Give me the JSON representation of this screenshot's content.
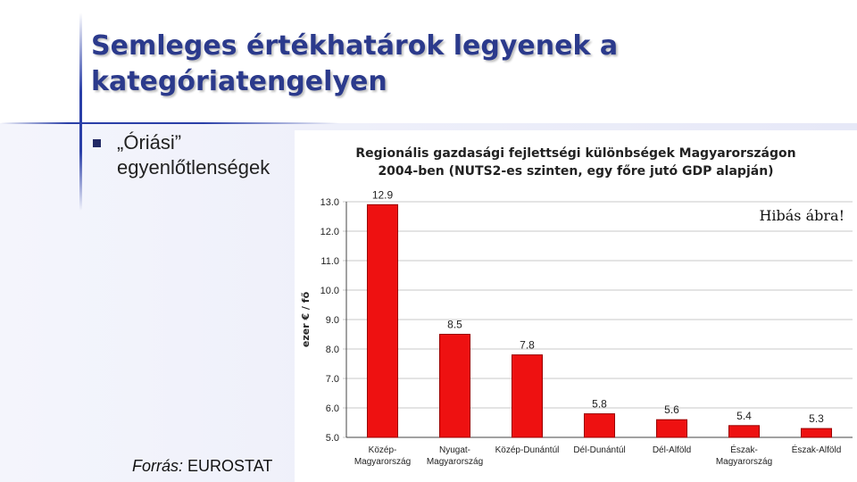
{
  "slide": {
    "title_line1": "Semleges értékhatárok legyenek a",
    "title_line2": "kategóriatengelyen",
    "bullet": "„Óriási”",
    "bullet_line2": "egyenlőtlenségek",
    "source_label": "Forrás:",
    "source_value": "EUROSTAT",
    "error_note": "Hibás ábra!"
  },
  "colors": {
    "bar": "#ee1111",
    "bar_edge": "#990000",
    "title": "#2b3a8c"
  },
  "chart_data": {
    "type": "bar",
    "title_line1": "Regionális gazdasági fejlettségi különbségek Magyarországon",
    "title_line2": "2004-ben (NUTS2-es szinten, egy főre jutó GDP alapján)",
    "ylabel": "ezer € / fő",
    "ylim": [
      5.0,
      13.0
    ],
    "yticks": [
      "5.0",
      "6.0",
      "7.0",
      "8.0",
      "9.0",
      "10.0",
      "11.0",
      "12.0",
      "13.0"
    ],
    "categories": [
      [
        "Közép-",
        "Magyarország"
      ],
      [
        "Nyugat-",
        "Magyarország"
      ],
      [
        "Közép-Dunántúl"
      ],
      [
        "Dél-Dunántúl"
      ],
      [
        "Dél-Alföld"
      ],
      [
        "Észak-",
        "Magyarország"
      ],
      [
        "Észak-Alföld"
      ]
    ],
    "values": [
      12.9,
      8.5,
      7.8,
      5.8,
      5.6,
      5.4,
      5.3
    ],
    "labels": [
      "12.9",
      "8.5",
      "7.8",
      "5.8",
      "5.6",
      "5.4",
      "5.3"
    ],
    "grid": true,
    "legend": "none"
  }
}
